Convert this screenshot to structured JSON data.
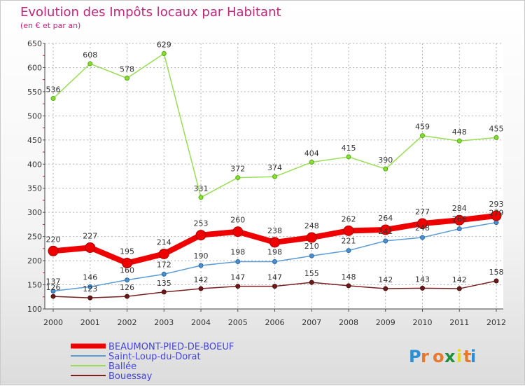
{
  "chart_data": {
    "type": "line",
    "title": "Evolution des Impôts locaux par Habitant",
    "subtitle": "(en € et par an)",
    "x": [
      "2000",
      "2001",
      "2002",
      "2003",
      "2004",
      "2005",
      "2006",
      "2007",
      "2008",
      "2009",
      "2010",
      "2011",
      "2012"
    ],
    "ylim": [
      100,
      650
    ],
    "yticks": [
      100,
      150,
      200,
      250,
      300,
      350,
      400,
      450,
      500,
      550,
      600,
      650
    ],
    "grid": true,
    "legend_position": "bottom-left",
    "series": [
      {
        "name": "BEAUMONT-PIED-DE-BOEUF",
        "color": "#ee0000",
        "values": [
          220,
          227,
          195,
          214,
          253,
          260,
          238,
          248,
          262,
          264,
          277,
          284,
          293
        ]
      },
      {
        "name": "Saint-Loup-du-Dorat",
        "color": "#5b9bd5",
        "values": [
          137,
          146,
          160,
          172,
          190,
          198,
          198,
          210,
          221,
          241,
          248,
          266,
          279
        ]
      },
      {
        "name": "Ballée",
        "color": "#99dd55",
        "values": [
          536,
          608,
          578,
          629,
          331,
          372,
          374,
          404,
          415,
          390,
          459,
          448,
          455
        ]
      },
      {
        "name": "Bouessay",
        "color": "#7a1f1f",
        "values": [
          126,
          123,
          126,
          135,
          142,
          147,
          147,
          155,
          148,
          142,
          143,
          142,
          158
        ]
      }
    ]
  },
  "logo": {
    "text": "Proxiti"
  }
}
